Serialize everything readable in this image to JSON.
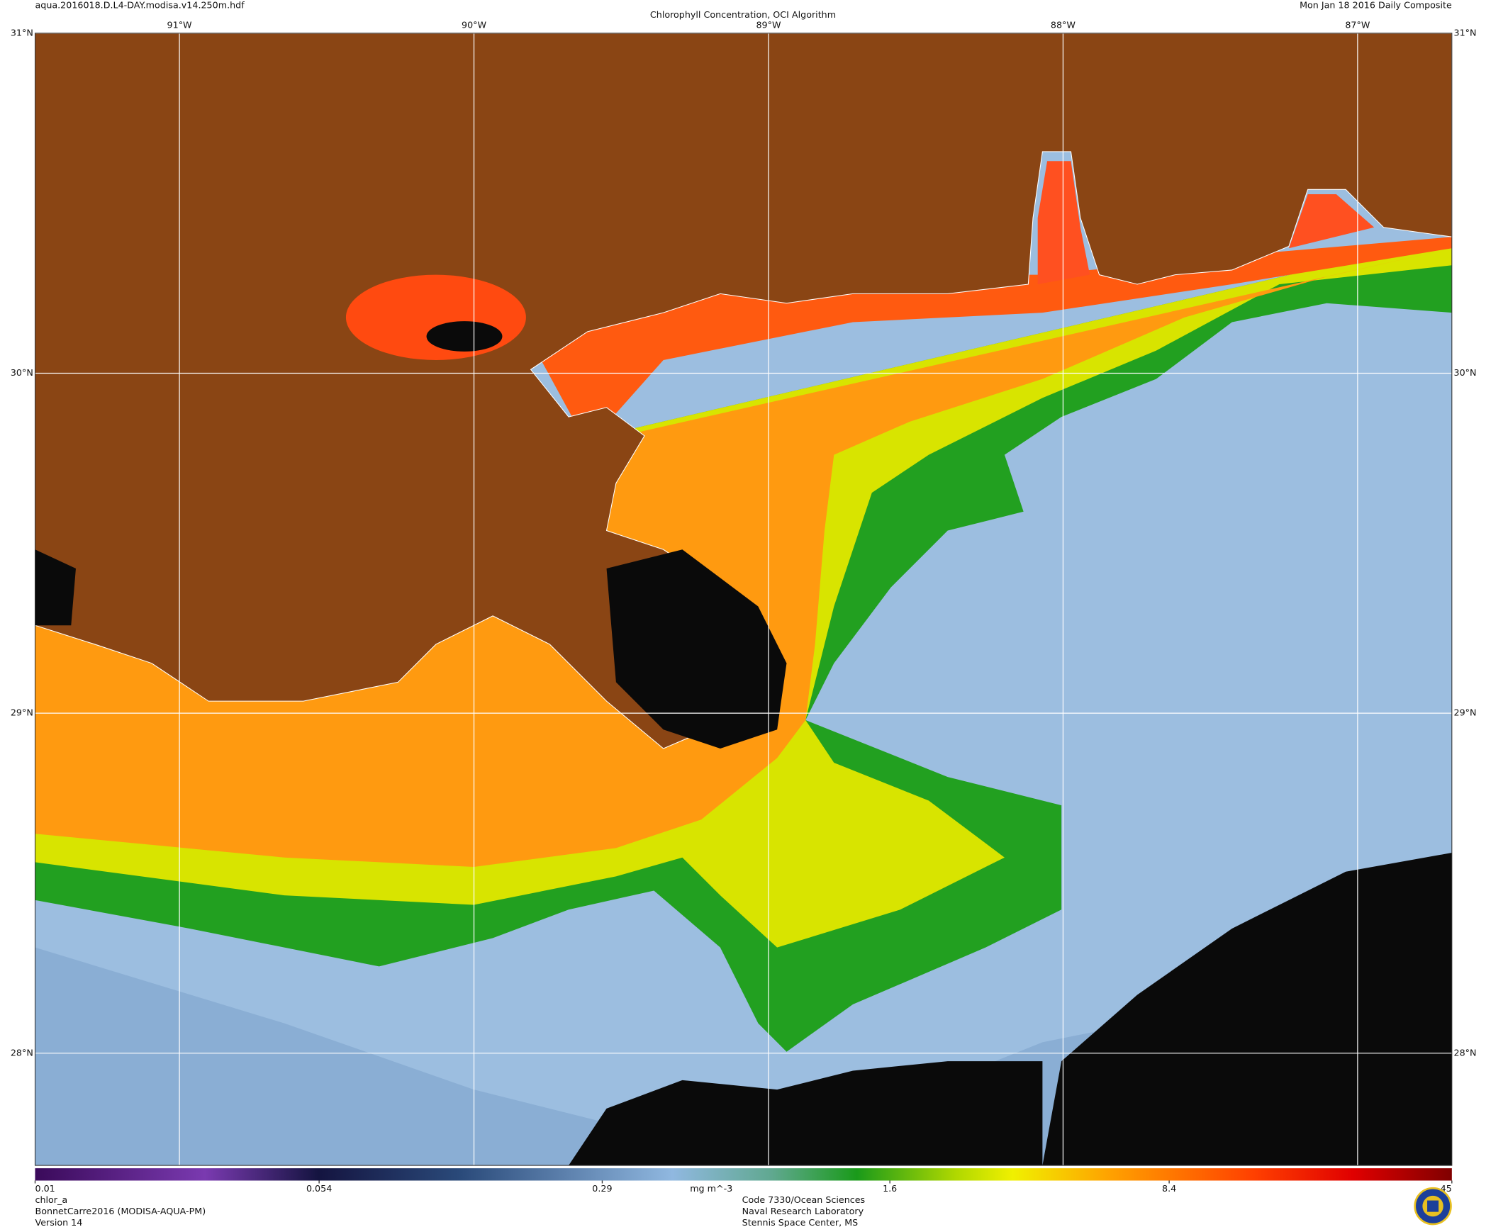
{
  "header": {
    "file": "aqua.2016018.D.L4-DAY.modisa.v14.250m.hdf",
    "title": "Chlorophyll Concentration, OCI Algorithm",
    "date": "Mon Jan 18 2016 Daily Composite"
  },
  "map": {
    "lonlim": [
      -91.49,
      -86.68
    ],
    "latlim": [
      27.67,
      31
    ],
    "lon_lines": [
      {
        "value": -91,
        "label": "91°W"
      },
      {
        "value": -90,
        "label": "90°W"
      },
      {
        "value": -89,
        "label": "89°W"
      },
      {
        "value": -88,
        "label": "88°W"
      },
      {
        "value": -87,
        "label": "87°W"
      }
    ],
    "lat_lines": [
      {
        "value": 31,
        "label": "31°N"
      },
      {
        "value": 30,
        "label": "30°N"
      },
      {
        "value": 29,
        "label": "29°N"
      },
      {
        "value": 28,
        "label": "28°N"
      }
    ]
  },
  "colorbar": {
    "lim": [
      0.01,
      45
    ],
    "ticks": [
      0.01,
      0.054,
      0.29,
      1.6,
      8.4,
      45
    ],
    "log": true,
    "unit": "mg m^-3"
  },
  "footer": {
    "left": [
      "chlor_a",
      "BonnetCarre2016 (MODISA-AQUA-PM)",
      "Version 14"
    ],
    "center": [
      "Code 7330/Ocean Sciences",
      "Naval Research Laboratory",
      "Stennis Space Center, MS"
    ]
  }
}
